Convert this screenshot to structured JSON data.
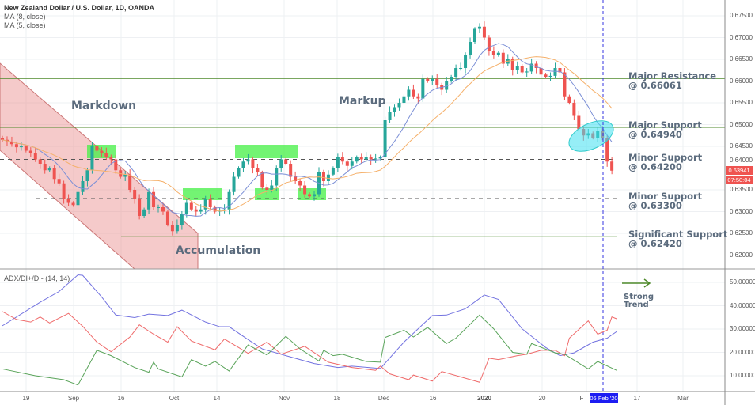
{
  "header": {
    "title": "New Zealand Dollar / U.S. Dollar, 1D, OANDA",
    "ma1": "MA (8, close)",
    "ma2": "MA (5, close)",
    "adx_label": "ADX/DI+/DI- (14, 14)"
  },
  "annotations": {
    "markdown": "Markdown",
    "markup": "Markup",
    "accumulation": "Accumulation",
    "strong_trend_1": "Strong",
    "strong_trend_2": "Trend"
  },
  "levels": [
    {
      "name": "Major Resistance",
      "value_label": "@ 0.66061",
      "price": 0.66061,
      "style": "solid"
    },
    {
      "name": "Major Support",
      "value_label": "@ 0.64940",
      "price": 0.6494,
      "style": "solid"
    },
    {
      "name": "Minor Support",
      "value_label": "@ 0.64200",
      "price": 0.642,
      "style": "dashed"
    },
    {
      "name": "Minor Support",
      "value_label": "@ 0.63300",
      "price": 0.633,
      "style": "dashed"
    },
    {
      "name": "Significant Support",
      "value_label": "@ 0.62420",
      "price": 0.6242,
      "style": "solid"
    }
  ],
  "current": {
    "price": "0.63941",
    "countdown": "07:50:04",
    "marker_date": "06 Feb '20"
  },
  "colors": {
    "up": "#26a69a",
    "down": "#ef5350",
    "ma_fast": "#7b8fd6",
    "ma_slow": "#f5b06a",
    "level": "#4f8a2b",
    "adx": "#7373e0",
    "di_plus": "#5aa45a",
    "di_minus": "#ef6a6a",
    "channel": "#e88a8a",
    "zone": "#44f044",
    "ellipse": "#3fe0f0"
  },
  "chart_data": [
    {
      "type": "candlestick",
      "title": "New Zealand Dollar / U.S. Dollar, 1D, OANDA",
      "ylim": [
        0.618,
        0.677
      ],
      "price_ticks": [
        "0.67500",
        "0.67000",
        "0.66500",
        "0.66000",
        "0.65500",
        "0.65000",
        "0.64500",
        "0.64000",
        "0.63500",
        "0.63000",
        "0.62500",
        "0.62000"
      ],
      "x_ticks": [
        "19",
        "Sep",
        "16",
        "Oct",
        "14",
        "Nov",
        "18",
        "Dec",
        "16",
        "2020",
        "20",
        "F",
        "17",
        "Mar"
      ],
      "closes": [
        0.6465,
        0.646,
        0.6455,
        0.6448,
        0.645,
        0.644,
        0.6435,
        0.642,
        0.641,
        0.6395,
        0.64,
        0.6375,
        0.6365,
        0.633,
        0.632,
        0.6315,
        0.6345,
        0.637,
        0.6395,
        0.645,
        0.644,
        0.6435,
        0.6425,
        0.642,
        0.6395,
        0.638,
        0.6385,
        0.635,
        0.633,
        0.629,
        0.6305,
        0.6345,
        0.631,
        0.631,
        0.63,
        0.627,
        0.6255,
        0.627,
        0.6295,
        0.632,
        0.6305,
        0.63,
        0.6305,
        0.633,
        0.631,
        0.63,
        0.6302,
        0.6305,
        0.6345,
        0.638,
        0.64,
        0.6415,
        0.642,
        0.64,
        0.639,
        0.6355,
        0.635,
        0.636,
        0.64,
        0.642,
        0.641,
        0.638,
        0.637,
        0.636,
        0.634,
        0.6335,
        0.634,
        0.639,
        0.637,
        0.6385,
        0.64,
        0.6425,
        0.6415,
        0.6405,
        0.6415,
        0.6425,
        0.642,
        0.6425,
        0.642,
        0.6422,
        0.6425,
        0.651,
        0.653,
        0.654,
        0.655,
        0.6565,
        0.658,
        0.6565,
        0.656,
        0.6605,
        0.66,
        0.6605,
        0.659,
        0.658,
        0.66,
        0.661,
        0.663,
        0.663,
        0.666,
        0.669,
        0.672,
        0.6725,
        0.67,
        0.667,
        0.666,
        0.6665,
        0.664,
        0.665,
        0.6625,
        0.6635,
        0.662,
        0.6622,
        0.664,
        0.663,
        0.6615,
        0.661,
        0.6612,
        0.663,
        0.662,
        0.6565,
        0.655,
        0.652,
        0.649,
        0.6475,
        0.648,
        0.647,
        0.6485,
        0.647,
        0.6415,
        0.6394
      ],
      "moving_averages": [
        "MA (8, close)",
        "MA (5, close)"
      ]
    },
    {
      "type": "line",
      "title": "ADX/DI+/DI- (14, 14)",
      "ylim": [
        3,
        55
      ],
      "y_ticks": [
        "50.00000",
        "40.00000",
        "30.00000",
        "20.00000",
        "10.00000"
      ],
      "series": [
        {
          "name": "ADX",
          "points": [
            [
              0,
              31.4
            ],
            [
              8,
              41.5
            ],
            [
              12,
              46.1
            ],
            [
              16,
              53.2
            ],
            [
              17,
              53
            ],
            [
              21,
              43.8
            ],
            [
              24,
              36
            ],
            [
              28,
              34.9
            ],
            [
              31,
              36.4
            ],
            [
              35,
              35.8
            ],
            [
              38,
              38.1
            ],
            [
              43,
              33
            ],
            [
              46,
              31
            ],
            [
              48,
              31
            ],
            [
              52,
              25.5
            ],
            [
              55,
              21.5
            ],
            [
              60,
              18.6
            ],
            [
              66,
              15.2
            ],
            [
              71,
              13.5
            ],
            [
              74,
              14.1
            ],
            [
              80,
              13.1
            ],
            [
              85,
              24.4
            ],
            [
              91,
              35.8
            ],
            [
              94,
              36
            ],
            [
              98,
              38.7
            ],
            [
              102,
              44.6
            ],
            [
              105,
              42.7
            ],
            [
              110,
              30.1
            ],
            [
              115,
              22.1
            ],
            [
              118,
              18.6
            ],
            [
              121,
              19.8
            ],
            [
              125,
              24.4
            ],
            [
              128,
              26.1
            ],
            [
              130,
              28.9
            ]
          ]
        },
        {
          "name": "DI-",
          "points": [
            [
              0,
              37.5
            ],
            [
              3,
              34.1
            ],
            [
              6,
              33
            ],
            [
              8,
              35.2
            ],
            [
              10,
              32.6
            ],
            [
              12,
              34.7
            ],
            [
              14,
              36.7
            ],
            [
              17,
              31.2
            ],
            [
              20,
              24.4
            ],
            [
              23,
              20.3
            ],
            [
              27,
              26.6
            ],
            [
              29,
              31.8
            ],
            [
              32,
              27.8
            ],
            [
              35,
              24.4
            ],
            [
              37,
              31
            ],
            [
              40,
              24.9
            ],
            [
              43,
              22.6
            ],
            [
              45,
              21.1
            ],
            [
              47,
              25.7
            ],
            [
              50,
              22.1
            ],
            [
              52,
              19.6
            ],
            [
              56,
              24.4
            ],
            [
              59,
              19.2
            ],
            [
              64,
              22.6
            ],
            [
              69,
              15.8
            ],
            [
              74,
              13.5
            ],
            [
              79,
              12.3
            ],
            [
              80,
              14.1
            ],
            [
              82,
              10.8
            ],
            [
              86,
              8.3
            ],
            [
              87,
              10.3
            ],
            [
              91,
              7.7
            ],
            [
              93,
              11.8
            ],
            [
              101,
              7.2
            ],
            [
              103,
              17.5
            ],
            [
              105,
              16.9
            ],
            [
              109,
              18.6
            ],
            [
              111,
              19.2
            ],
            [
              114,
              20.9
            ],
            [
              117,
              20.9
            ],
            [
              119,
              18.6
            ],
            [
              120,
              26.1
            ],
            [
              124,
              33.5
            ],
            [
              126,
              27.8
            ],
            [
              128,
              29.5
            ],
            [
              129,
              35.2
            ],
            [
              130,
              34.4
            ]
          ]
        },
        {
          "name": "DI+",
          "points": [
            [
              0,
              12.9
            ],
            [
              7,
              10
            ],
            [
              13,
              8.3
            ],
            [
              16,
              6
            ],
            [
              20,
              20.9
            ],
            [
              23,
              18.6
            ],
            [
              28,
              13.5
            ],
            [
              31,
              11.5
            ],
            [
              32,
              15.8
            ],
            [
              33,
              12.9
            ],
            [
              38,
              9.5
            ],
            [
              40,
              16.9
            ],
            [
              43,
              14.1
            ],
            [
              45,
              16.1
            ],
            [
              48,
              12
            ],
            [
              52,
              23.2
            ],
            [
              56,
              18.9
            ],
            [
              60,
              26.9
            ],
            [
              63,
              21.5
            ],
            [
              67,
              16.3
            ],
            [
              68,
              20.9
            ],
            [
              70,
              18.6
            ],
            [
              72,
              19.2
            ],
            [
              77,
              16.1
            ],
            [
              80,
              15.8
            ],
            [
              81,
              26.4
            ],
            [
              85,
              29.5
            ],
            [
              87,
              26.6
            ],
            [
              90,
              30.7
            ],
            [
              94,
              23.8
            ],
            [
              96,
              26.1
            ],
            [
              101,
              36
            ],
            [
              104,
              30.1
            ],
            [
              108,
              20
            ],
            [
              111,
              19.2
            ],
            [
              112,
              23.8
            ],
            [
              117,
              19.8
            ],
            [
              119,
              19.2
            ],
            [
              124,
              12.9
            ],
            [
              126,
              16.1
            ],
            [
              130,
              12.3
            ]
          ]
        }
      ]
    }
  ]
}
